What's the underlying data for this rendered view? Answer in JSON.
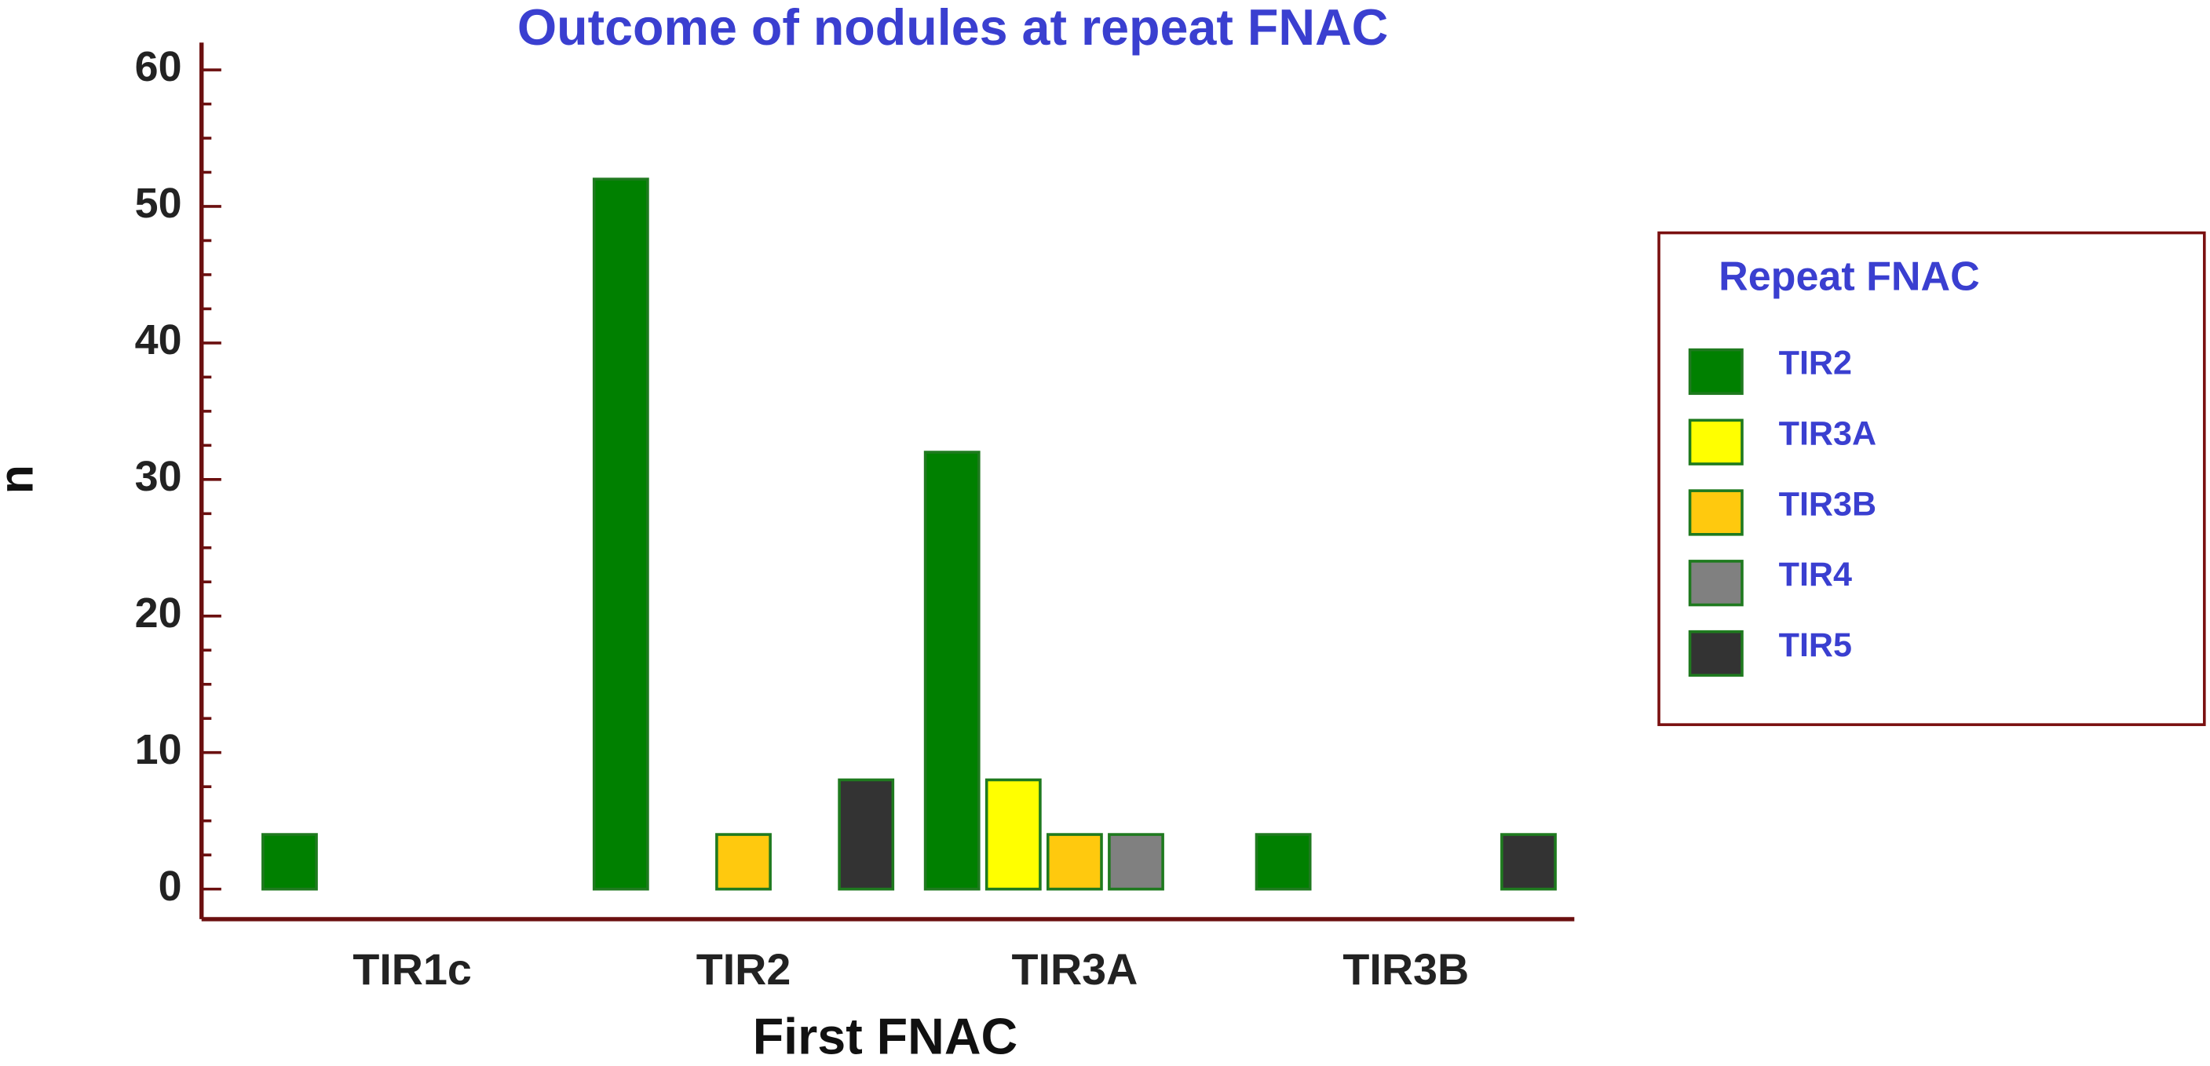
{
  "chart_data": {
    "type": "bar",
    "title": "Outcome of nodules at repeat FNAC",
    "x_label": "First FNAC",
    "y_label": "n",
    "legend_title": "Repeat FNAC",
    "categories": [
      "TIR1c",
      "TIR2",
      "TIR3A",
      "TIR3B"
    ],
    "series": [
      {
        "name": "TIR2",
        "color": "#008000",
        "values": [
          4,
          52,
          32,
          4
        ]
      },
      {
        "name": "TIR3A",
        "color": "#ffff00",
        "values": [
          0,
          0,
          8,
          0
        ]
      },
      {
        "name": "TIR3B",
        "color": "#ffc90e",
        "values": [
          0,
          4,
          4,
          0
        ]
      },
      {
        "name": "TIR4",
        "color": "#808080",
        "values": [
          0,
          0,
          4,
          0
        ]
      },
      {
        "name": "TIR5",
        "color": "#333333",
        "values": [
          0,
          8,
          0,
          4
        ]
      }
    ],
    "ylim": [
      -2.2,
      62
    ],
    "yticks": [
      0,
      10,
      20,
      30,
      40,
      50,
      60
    ]
  }
}
